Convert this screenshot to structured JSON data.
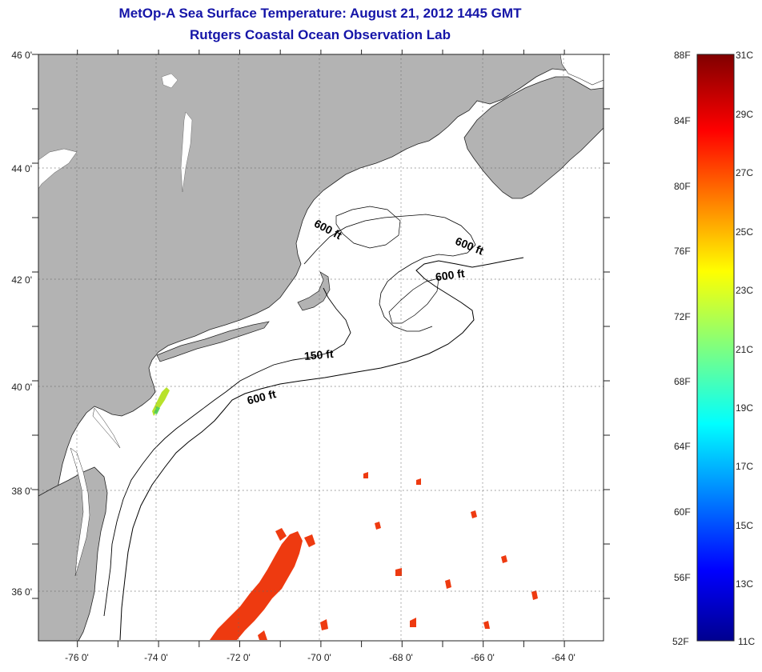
{
  "title_line1": "MetOp-A Sea Surface Temperature:  August 21, 2012 1445 GMT",
  "title_line2": "Rutgers Coastal Ocean Observation Lab",
  "map": {
    "lat_labels": [
      "46 0'",
      "44 0'",
      "42 0'",
      "40 0'",
      "38 0'",
      "36 0'"
    ],
    "lon_labels": [
      "-76 0'",
      "-74 0'",
      "-72 0'",
      "-70 0'",
      "-68 0'",
      "-66 0'",
      "-64 0'"
    ],
    "contour_labels": {
      "c1": "600 ft",
      "c2": "600 ft",
      "c3": "600 ft",
      "c4": "150 ft",
      "c5": "600 ft"
    },
    "land_color": "#b3b3b3",
    "sst_color_warm": "#ee3a10"
  },
  "colorbar": {
    "fahrenheit": [
      "88F",
      "84F",
      "80F",
      "76F",
      "72F",
      "68F",
      "64F",
      "60F",
      "56F",
      "52F"
    ],
    "celsius": [
      "31C",
      "29C",
      "27C",
      "25C",
      "23C",
      "21C",
      "19C",
      "17C",
      "15C",
      "13C",
      "11C"
    ]
  }
}
